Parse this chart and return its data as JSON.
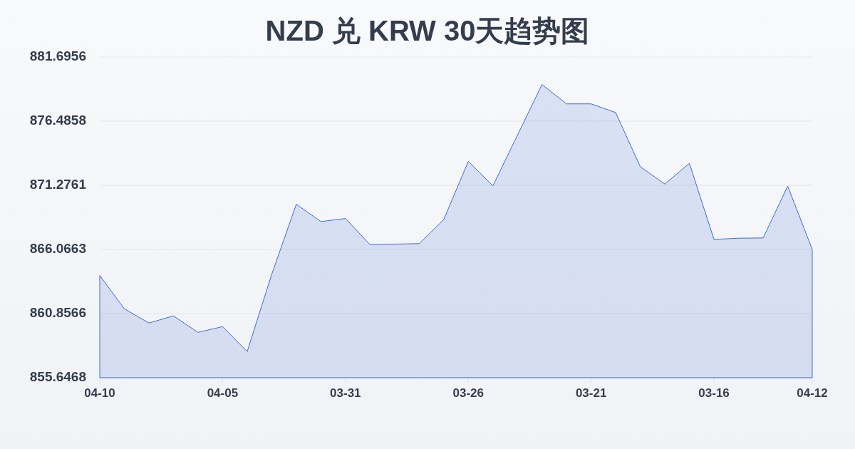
{
  "chart_data": {
    "type": "area",
    "title": "NZD 兑 KRW 30天趋势图",
    "categories": [
      "04-10",
      null,
      null,
      null,
      null,
      "04-05",
      null,
      null,
      null,
      null,
      "03-31",
      null,
      null,
      null,
      null,
      "03-26",
      null,
      null,
      null,
      null,
      "03-21",
      null,
      null,
      null,
      null,
      "03-16",
      null,
      null,
      null,
      "04-12"
    ],
    "series": [
      {
        "color": "#3d6bd6",
        "values": [
          863.95,
          861.25,
          860.09,
          860.67,
          859.33,
          859.8,
          857.77,
          864.05,
          869.74,
          868.33,
          868.58,
          866.46,
          866.5,
          866.54,
          868.49,
          873.22,
          871.23,
          875.34,
          879.46,
          877.89,
          877.89,
          877.18,
          872.79,
          871.38,
          873.06,
          866.88,
          866.98,
          867.0,
          871.21,
          866.07
        ]
      }
    ],
    "ylim": [
      855.6468,
      881.6956
    ],
    "yticks": [
      855.6468,
      860.8566,
      866.0663,
      871.2761,
      876.4858,
      881.6956
    ],
    "grid": "y"
  }
}
